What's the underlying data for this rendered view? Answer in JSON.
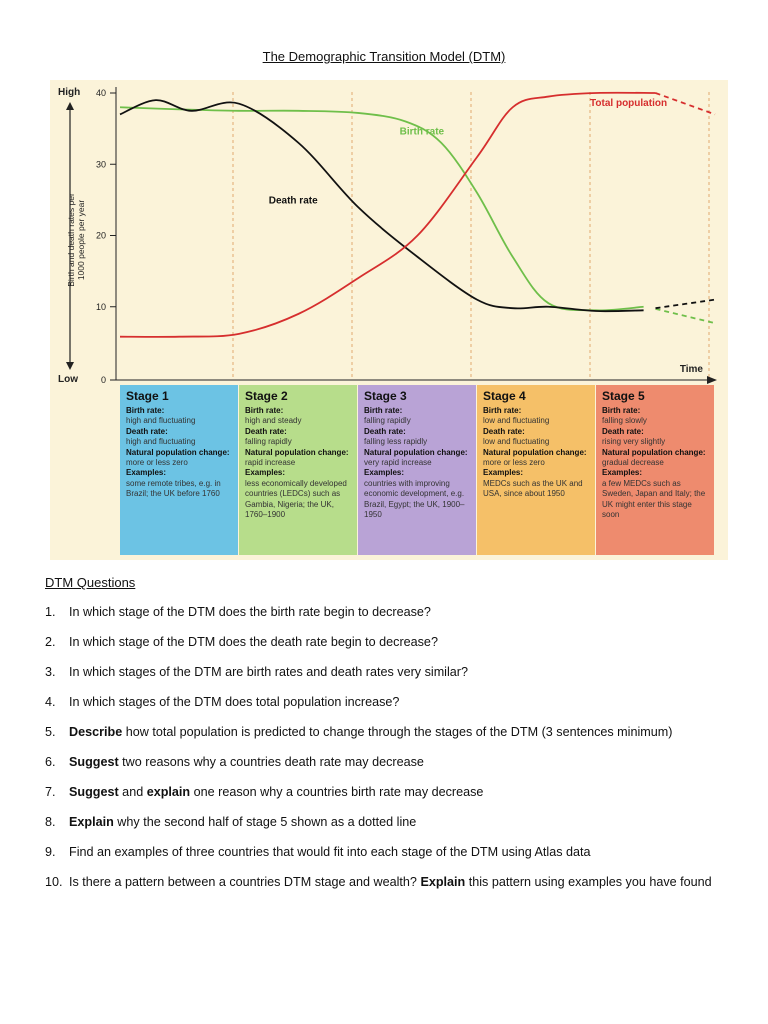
{
  "document": {
    "title": "The Demographic Transition Model (DTM)"
  },
  "chart_data": {
    "type": "line",
    "ylabel": "Birth and death rates per 1000 people per year",
    "y_high_label": "High",
    "y_low_label": "Low",
    "xlabel": "Time",
    "y_ticks": [
      "40",
      "30",
      "20",
      "10",
      "0"
    ],
    "ylim": [
      0,
      40
    ],
    "grid": false,
    "series": [
      {
        "name": "Birth rate",
        "color": "#6fbf4a",
        "x": [
          0.0,
          0.5,
          1.0,
          1.5,
          2.0,
          2.4,
          2.7,
          3.0,
          3.3,
          3.6,
          4.0,
          4.4,
          4.8,
          5.0
        ],
        "values": [
          38,
          37.7,
          37.5,
          37.5,
          37.2,
          36,
          33,
          26,
          17,
          10.5,
          9.5,
          10,
          9.5,
          9
        ],
        "dashed_from_x": 4.5,
        "dashed_values_x": [
          4.5,
          5.0
        ],
        "dashed_values": [
          9.7,
          7.7
        ]
      },
      {
        "name": "Death rate",
        "color": "#111111",
        "x": [
          0.0,
          0.3,
          0.6,
          1.0,
          1.5,
          2.0,
          2.5,
          3.0,
          3.3,
          3.6,
          4.0,
          4.4,
          4.8,
          5.0
        ],
        "values": [
          37,
          39,
          37.5,
          38.5,
          33,
          24,
          17,
          11,
          9.8,
          10,
          9.4,
          9.5,
          10,
          10.2
        ],
        "dashed_from_x": 4.5,
        "dashed_values_x": [
          4.5,
          5.0
        ],
        "dashed_values": [
          9.8,
          11
        ]
      },
      {
        "name": "Total population",
        "color": "#d62e2e",
        "x": [
          0.0,
          0.5,
          1.0,
          1.5,
          2.0,
          2.5,
          3.0,
          3.3,
          3.6,
          4.0,
          4.5,
          5.0
        ],
        "values": [
          5.8,
          5.8,
          6.2,
          9,
          14,
          20,
          31,
          38,
          39.5,
          40,
          40,
          37
        ],
        "dashed_from_x": 4.5,
        "dashed_values_x": [
          4.5,
          5.0
        ],
        "dashed_values": [
          40,
          37
        ]
      }
    ]
  },
  "stages": [
    {
      "name": "Stage 1",
      "color": "#6cc3e4",
      "birth_label": "Birth rate:",
      "birth": "high and fluctuating",
      "death_label": "Death rate:",
      "death": "high and fluctuating",
      "npc_label": "Natural population change:",
      "npc": "more or less zero",
      "examples_label": "Examples:",
      "examples": "some remote tribes, e.g. in Brazil; the UK before 1760"
    },
    {
      "name": "Stage 2",
      "color": "#b7dd8b",
      "birth_label": "Birth rate:",
      "birth": "high and steady",
      "death_label": "Death rate:",
      "death": "falling rapidly",
      "npc_label": "Natural population change:",
      "npc": "rapid increase",
      "examples_label": "Examples:",
      "examples": "less economically developed countries (LEDCs) such as Gambia, Nigeria; the UK, 1760–1900"
    },
    {
      "name": "Stage 3",
      "color": "#b9a3d6",
      "birth_label": "Birth rate:",
      "birth": "falling rapidly",
      "death_label": "Death rate:",
      "death": "falling less rapidly",
      "npc_label": "Natural population change:",
      "npc": "very rapid increase",
      "examples_label": "Examples:",
      "examples": "countries with improving economic development, e.g. Brazil, Egypt; the UK, 1900–1950"
    },
    {
      "name": "Stage 4",
      "color": "#f5c068",
      "birth_label": "Birth rate:",
      "birth": "low and fluctuating",
      "death_label": "Death rate:",
      "death": "low and fluctuating",
      "npc_label": "Natural population change:",
      "npc": "more or less zero",
      "examples_label": "Examples:",
      "examples": "MEDCs such as the UK and USA, since about 1950"
    },
    {
      "name": "Stage 5",
      "color": "#ee8b6e",
      "birth_label": "Birth rate:",
      "birth": "falling slowly",
      "death_label": "Death rate:",
      "death": "rising very slightly",
      "npc_label": "Natural population change:",
      "npc": "gradual decrease",
      "examples_label": "Examples:",
      "examples": "a few MEDCs such as Sweden, Japan and Italy; the UK might enter this stage soon"
    }
  ],
  "questions_title": "DTM Questions",
  "questions": [
    {
      "num": "1.",
      "bold": "",
      "text": "In which stage of the DTM does the birth rate begin to decrease?"
    },
    {
      "num": "2.",
      "bold": "",
      "text": "In which stage of the DTM does the death rate begin to decrease?"
    },
    {
      "num": "3.",
      "bold": "",
      "text": "In which stages of the DTM are birth rates and death rates very similar?"
    },
    {
      "num": "4.",
      "bold": "",
      "text": "In which stages of the DTM does total population increase?"
    },
    {
      "num": "5.",
      "bold": "Describe",
      "text": " how total population is predicted to change through the stages of the DTM (3 sentences minimum)"
    },
    {
      "num": "6.",
      "bold": "Suggest",
      "text": " two reasons why a countries death rate may decrease"
    },
    {
      "num": "7.",
      "bold": "Suggest",
      "text": " and ",
      "bold2": "explain",
      "text2": " one reason why a countries birth rate may decrease"
    },
    {
      "num": "8.",
      "bold": "Explain",
      "text": " why the second half of stage 5 shown as a dotted line"
    },
    {
      "num": "9.",
      "bold": "",
      "text": "Find an examples of three countries that would fit into each stage of the DTM using Atlas data"
    },
    {
      "num": "10.",
      "bold": "",
      "text": "Is there a pattern between a countries DTM stage and wealth? ",
      "bold2": "Explain",
      "text2": " this pattern using examples you have found"
    }
  ]
}
